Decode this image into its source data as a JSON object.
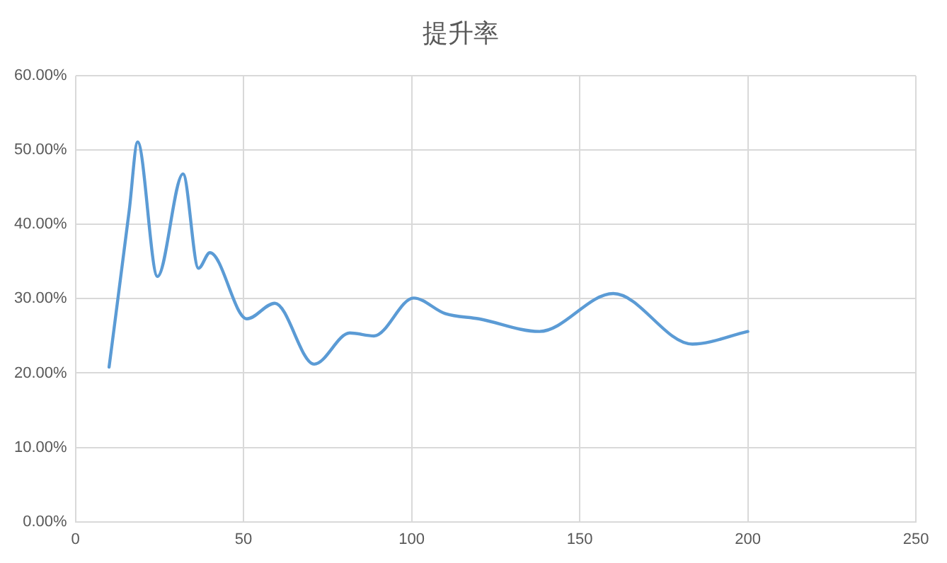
{
  "chart_data": {
    "type": "line",
    "title": "提升率",
    "x": [
      10,
      16,
      18.5,
      24.4,
      32,
      36.6,
      40,
      51,
      59.3,
      71,
      81.6,
      88.8,
      100.6,
      110,
      120,
      138,
      160,
      183.5,
      200
    ],
    "series": [
      {
        "color": "#5b9bd5",
        "values": [
          20.8,
          41.9,
          51.1,
          33,
          46.8,
          34.1,
          36.2,
          27.3,
          29.4,
          21.2,
          25.4,
          25,
          30.1,
          28,
          27.3,
          25.6,
          30.7,
          23.9,
          25.6
        ]
      }
    ],
    "xlim": [
      0,
      250
    ],
    "xticks": [
      0,
      50,
      100,
      150,
      200,
      250
    ],
    "ylim": [
      0,
      60
    ],
    "yticks": [
      {
        "value": 0,
        "label": "0.00%"
      },
      {
        "value": 10,
        "label": "10.00%"
      },
      {
        "value": 20,
        "label": "20.00%"
      },
      {
        "value": 30,
        "label": "30.00%"
      },
      {
        "value": 40,
        "label": "40.00%"
      },
      {
        "value": 50,
        "label": "50.00%"
      },
      {
        "value": 60,
        "label": "60.00%"
      }
    ],
    "grid": true,
    "legend": false,
    "marker": "none",
    "line_style": "solid"
  }
}
